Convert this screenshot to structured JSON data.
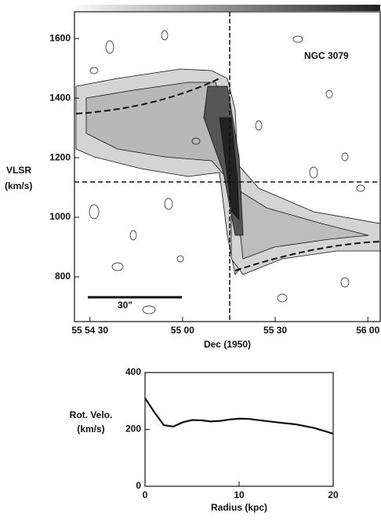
{
  "chart_data": [
    {
      "type": "image",
      "annotation": "NGC 3079",
      "scale_label": "30\"",
      "ylabel": "VLSR",
      "ylabel_unit": "(km/s)",
      "xlabel": "Dec (1950)",
      "xlim": [
        25,
        124
      ],
      "xticks": [
        {
          "value": 30,
          "label": "55 54 30"
        },
        {
          "value": 60,
          "label": "55 00"
        },
        {
          "value": 90,
          "label": "55 30"
        },
        {
          "value": 120,
          "label": "56 00"
        }
      ],
      "ylim": [
        650,
        1690
      ],
      "yticks": [
        800,
        1000,
        1200,
        1400,
        1600
      ]
    },
    {
      "type": "line",
      "ylabel": "Rot. Velo.",
      "ylabel_unit": "(km/s)",
      "xlabel": "Radius (kpc)",
      "x": [
        0,
        1,
        2,
        3,
        4,
        5,
        6,
        7,
        8,
        9,
        10,
        11,
        12,
        14,
        16,
        18,
        20
      ],
      "series": [
        {
          "color": "#111111",
          "values": [
            310,
            260,
            215,
            210,
            225,
            233,
            232,
            228,
            230,
            235,
            238,
            237,
            233,
            225,
            218,
            205,
            185
          ]
        }
      ],
      "xlim": [
        0,
        20
      ],
      "xticks": [
        0,
        10,
        20
      ],
      "ylim": [
        0,
        400
      ],
      "yticks": [
        0,
        200,
        400
      ]
    }
  ]
}
